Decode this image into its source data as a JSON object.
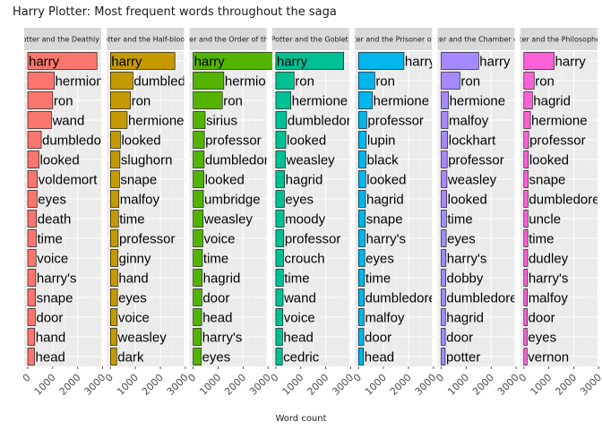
{
  "chart_data": {
    "type": "bar",
    "orientation": "horizontal",
    "facets": "small-multiples",
    "title": "Harry Plotter: Most frequent words throughout the saga",
    "xlabel": "Word count",
    "ylabel": "",
    "xlim": [
      0,
      3500
    ],
    "x_ticks": [
      0,
      1000,
      2000,
      3000
    ],
    "x_tick_labels": [
      "0",
      "1000",
      "2000",
      "3000"
    ],
    "grid": true,
    "legend": "none",
    "panels": [
      {
        "strip_label": "Harry Potter and the Deathly Hallows",
        "color": "#F8766D",
        "words": [
          "harry",
          "hermione",
          "ron",
          "wand",
          "dumbledore",
          "looked",
          "voldemort",
          "eyes",
          "death",
          "time",
          "voice",
          "harry's",
          "snape",
          "door",
          "hand",
          "head"
        ],
        "values": [
          2770,
          1060,
          1000,
          950,
          540,
          450,
          380,
          370,
          350,
          340,
          330,
          320,
          310,
          300,
          280,
          270
        ]
      },
      {
        "strip_label": "Harry Potter and the Half-blood Prince",
        "color": "#C49A00",
        "words": [
          "harry",
          "dumbledore",
          "ron",
          "hermione",
          "looked",
          "slughorn",
          "snape",
          "malfoy",
          "time",
          "professor",
          "ginny",
          "hand",
          "eyes",
          "voice",
          "weasley",
          "dark"
        ],
        "values": [
          2580,
          900,
          800,
          670,
          400,
          380,
          360,
          340,
          320,
          310,
          300,
          290,
          280,
          270,
          260,
          250
        ]
      },
      {
        "strip_label": "Harry Potter and the Order of the Phoenix",
        "color": "#53B400",
        "words": [
          "harry",
          "hermione",
          "ron",
          "sirius",
          "professor",
          "dumbledore",
          "looked",
          "umbridge",
          "weasley",
          "voice",
          "time",
          "hagrid",
          "door",
          "head",
          "harry's",
          "eyes"
        ],
        "values": [
          3730,
          1230,
          1170,
          480,
          450,
          440,
          430,
          410,
          400,
          390,
          370,
          360,
          350,
          340,
          330,
          320
        ]
      },
      {
        "strip_label": "Harry Potter and the Goblet of Fire",
        "color": "#00C094",
        "words": [
          "harry",
          "ron",
          "hermione",
          "dumbledore",
          "looked",
          "weasley",
          "hagrid",
          "eyes",
          "moody",
          "professor",
          "crouch",
          "time",
          "wand",
          "voice",
          "head",
          "cedric"
        ],
        "values": [
          2720,
          730,
          600,
          430,
          400,
          380,
          350,
          340,
          330,
          320,
          310,
          300,
          290,
          280,
          270,
          260
        ]
      },
      {
        "strip_label": "Harry Potter and the Prisoner of Azkaban",
        "color": "#00B6EB",
        "words": [
          "harry",
          "ron",
          "hermione",
          "professor",
          "lupin",
          "black",
          "looked",
          "hagrid",
          "snape",
          "harry's",
          "eyes",
          "time",
          "dumbledore",
          "malfoy",
          "door",
          "head"
        ],
        "values": [
          1820,
          650,
          550,
          330,
          310,
          300,
          290,
          280,
          270,
          260,
          250,
          240,
          230,
          220,
          210,
          200
        ]
      },
      {
        "strip_label": "Harry Potter and the Chamber of Secrets",
        "color": "#A58AFF",
        "words": [
          "harry",
          "ron",
          "hermione",
          "malfoy",
          "lockhart",
          "professor",
          "weasley",
          "looked",
          "time",
          "eyes",
          "harry's",
          "dobby",
          "dumbledore",
          "hagrid",
          "door",
          "potter"
        ],
        "values": [
          1500,
          750,
          290,
          270,
          260,
          240,
          230,
          220,
          210,
          200,
          190,
          180,
          175,
          170,
          165,
          160
        ]
      },
      {
        "strip_label": "Harry Potter and the Philosopher's Stone",
        "color": "#FB61D7",
        "words": [
          "harry",
          "ron",
          "hagrid",
          "hermione",
          "professor",
          "looked",
          "snape",
          "dumbledore",
          "uncle",
          "time",
          "dudley",
          "harry's",
          "malfoy",
          "door",
          "eyes",
          "vernon"
        ],
        "values": [
          1210,
          410,
          340,
          260,
          190,
          180,
          170,
          165,
          160,
          155,
          150,
          145,
          140,
          135,
          130,
          125
        ]
      }
    ]
  }
}
